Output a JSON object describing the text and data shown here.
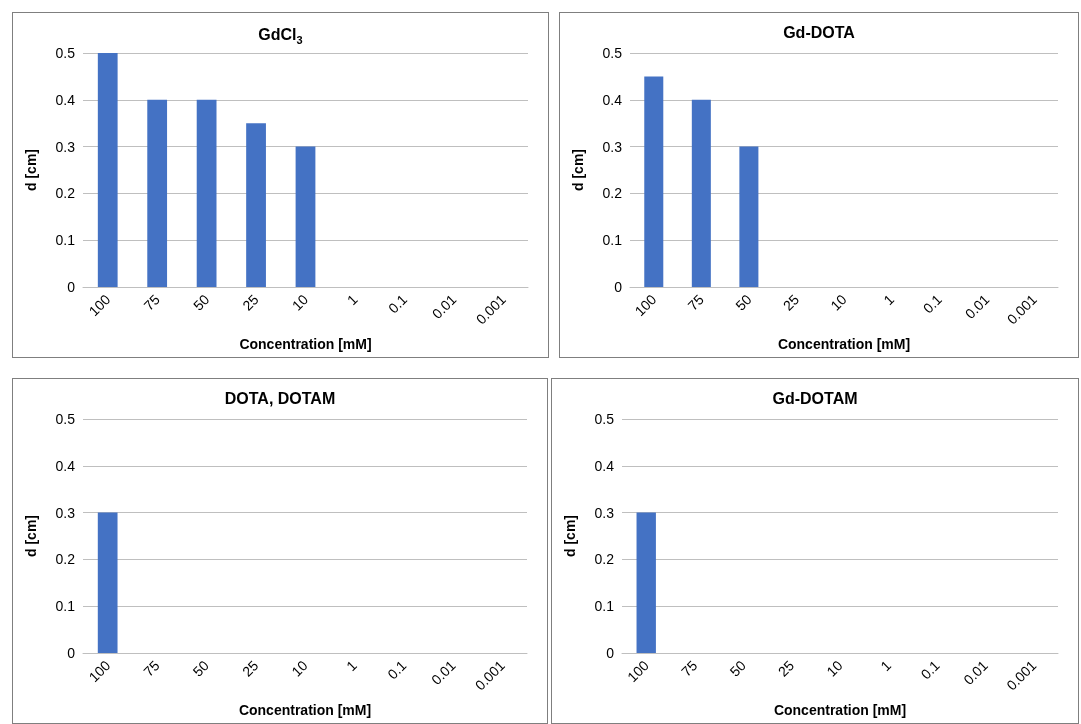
{
  "chart_data": [
    {
      "type": "bar",
      "title": "GdCl$_{3}$",
      "xlabel": "Concentration [mM]",
      "ylabel": "d [cm]",
      "categories": [
        "100",
        "75",
        "50",
        "25",
        "10",
        "1",
        "0.1",
        "0.01",
        "0.001"
      ],
      "values": [
        0.5,
        0.4,
        0.4,
        0.35,
        0.3,
        0,
        0,
        0,
        0
      ],
      "color": "#4472c4",
      "ylim": [
        0,
        0.5
      ],
      "yticks": [
        0,
        0.1,
        0.2,
        0.3,
        0.4,
        0.5
      ],
      "grid": "y"
    },
    {
      "type": "bar",
      "title": "Gd-DOTA",
      "xlabel": "Concentration [mM]",
      "ylabel": "d [cm]",
      "categories": [
        "100",
        "75",
        "50",
        "25",
        "10",
        "1",
        "0.1",
        "0.01",
        "0.001"
      ],
      "values": [
        0.45,
        0.4,
        0.3,
        0,
        0,
        0,
        0,
        0,
        0
      ],
      "color": "#4472c4",
      "ylim": [
        0,
        0.5
      ],
      "yticks": [
        0,
        0.1,
        0.2,
        0.3,
        0.4,
        0.5
      ],
      "grid": "y"
    },
    {
      "type": "bar",
      "title": "DOTA, DOTAM",
      "xlabel": "Concentration [mM]",
      "ylabel": "d [cm]",
      "categories": [
        "100",
        "75",
        "50",
        "25",
        "10",
        "1",
        "0.1",
        "0.01",
        "0.001"
      ],
      "values": [
        0.3,
        0,
        0,
        0,
        0,
        0,
        0,
        0,
        0
      ],
      "color": "#4472c4",
      "ylim": [
        0,
        0.5
      ],
      "yticks": [
        0,
        0.1,
        0.2,
        0.3,
        0.4,
        0.5
      ],
      "grid": "y"
    },
    {
      "type": "bar",
      "title": "Gd-DOTAM",
      "xlabel": "Concentration [mM]",
      "ylabel": "d [cm]",
      "categories": [
        "100",
        "75",
        "50",
        "25",
        "10",
        "1",
        "0.1",
        "0.01",
        "0.001"
      ],
      "values": [
        0.3,
        0,
        0,
        0,
        0,
        0,
        0,
        0,
        0
      ],
      "color": "#4472c4",
      "ylim": [
        0,
        0.5
      ],
      "yticks": [
        0,
        0.1,
        0.2,
        0.3,
        0.4,
        0.5
      ],
      "grid": "y"
    }
  ]
}
